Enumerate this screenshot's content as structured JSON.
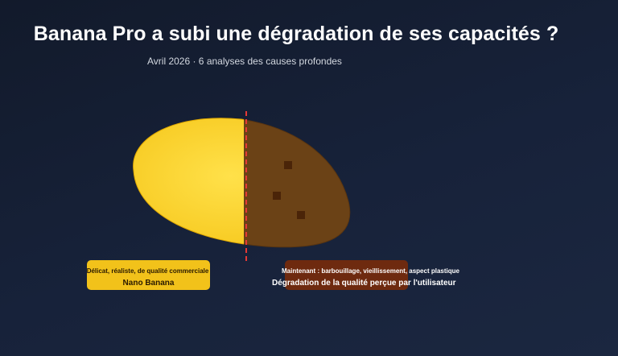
{
  "title": "Banana Pro a subi une dégradation de ses capacités ?",
  "subtitle": "Avril 2026 · 6 analyses des causes profondes",
  "colors": {
    "fresh": "#fdd835",
    "degraded": "#6b4216",
    "divider": "#e53935",
    "left_label_bg": "#f2c21a",
    "right_label_bg": "#6e2a0f"
  },
  "left_label": {
    "caption": "Délicat, réaliste, de qualité commerciale",
    "name": "Nano Banana"
  },
  "right_label": {
    "caption": "Maintenant : barbouillage, vieillissement, aspect plastique",
    "name": "Dégradation de la qualité perçue par l'utilisateur"
  }
}
